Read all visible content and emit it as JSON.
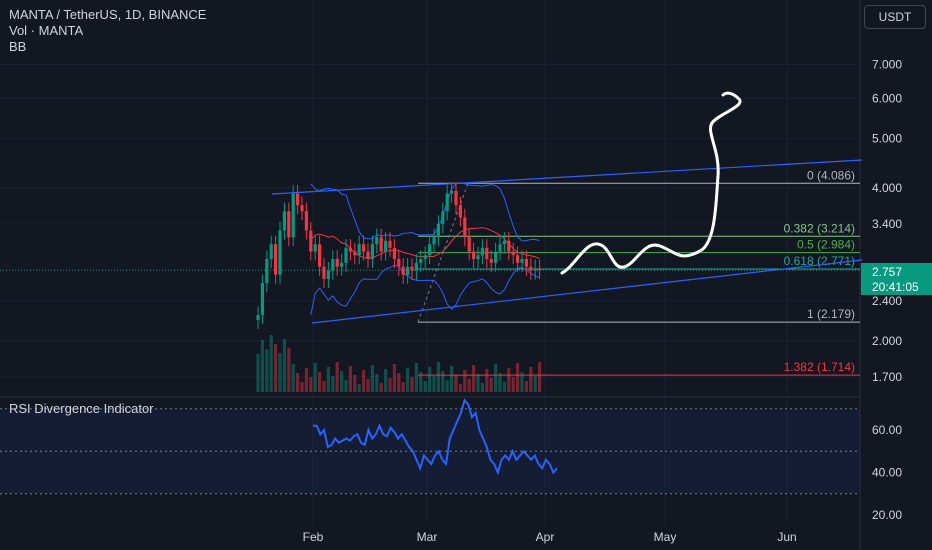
{
  "header": {
    "symbol_line": "MANTA / TetherUS, 1D, BINANCE",
    "volume_label": "Vol · MANTA",
    "bb_label": "BB"
  },
  "currency": "USDT",
  "last_price": {
    "value": "2.757",
    "countdown": "20:41:05"
  },
  "rsi_title": "RSI Divergence Indicator",
  "colors": {
    "background": "#131722",
    "up": "#089981",
    "down": "#f23645",
    "trendline": "#2962ff",
    "bb_band": "#2962ff",
    "bb_basis": "#f23645",
    "rsi_line": "#2962ff",
    "drawing": "#ffffff"
  },
  "chart_data": {
    "type": "candlestick",
    "price_axis": {
      "scale": "log",
      "ticks": [
        "7.000",
        "6.000",
        "5.000",
        "4.000",
        "3.400",
        "2.400",
        "2.000",
        "1.700"
      ],
      "tick_values": [
        7.0,
        6.0,
        5.0,
        4.0,
        3.4,
        2.4,
        2.0,
        1.7
      ]
    },
    "time_axis": {
      "labels": [
        "Feb",
        "Mar",
        "Apr",
        "May",
        "Jun"
      ]
    },
    "fib_levels": [
      {
        "label": "0 (4.086)",
        "price": 4.086,
        "color": "#b2b5be"
      },
      {
        "label": "0.382 (3.214)",
        "price": 3.214,
        "color": "#81c784"
      },
      {
        "label": "0.5 (2.984)",
        "price": 2.984,
        "color": "#4caf50"
      },
      {
        "label": "0.618 (2.771)",
        "price": 2.771,
        "color": "#26a69a"
      },
      {
        "label": "1 (2.179)",
        "price": 2.179,
        "color": "#b2b5be"
      },
      {
        "label": "1.382 (1.714)",
        "price": 1.714,
        "color": "#f23645"
      }
    ],
    "rsi": {
      "ticks": [
        "60.00",
        "40.00",
        "20.00"
      ],
      "tick_values": [
        60,
        40,
        20
      ],
      "band": [
        70,
        30
      ],
      "mid": 50,
      "values": [
        62,
        62,
        58,
        60,
        52,
        53,
        56,
        54,
        55,
        56,
        55,
        57,
        58,
        54,
        53,
        60,
        56,
        58,
        62,
        58,
        57,
        61,
        59,
        56,
        58,
        55,
        52,
        50,
        46,
        42,
        48,
        46,
        44,
        48,
        50,
        46,
        44,
        56,
        60,
        64,
        68,
        74,
        72,
        66,
        68,
        60,
        56,
        52,
        46,
        44,
        40,
        46,
        48,
        46,
        50,
        46,
        48,
        50,
        48,
        46,
        48,
        44,
        42,
        46,
        44,
        40,
        42
      ]
    }
  }
}
